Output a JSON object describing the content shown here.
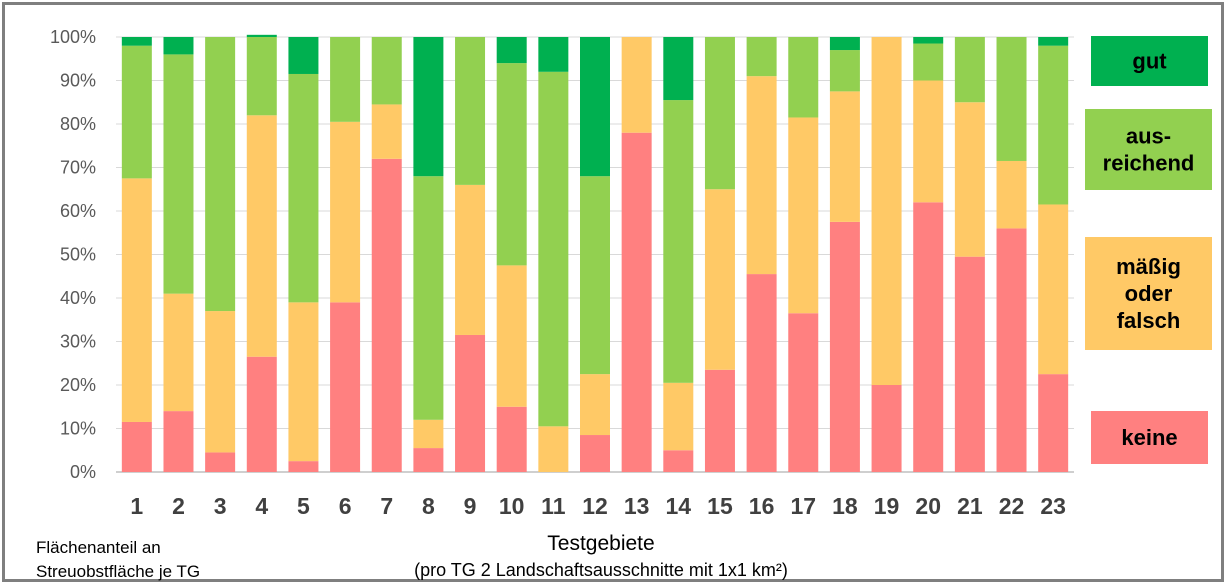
{
  "chart_data": {
    "type": "bar",
    "stacked": true,
    "categories": [
      "1",
      "2",
      "3",
      "4",
      "5",
      "6",
      "7",
      "8",
      "9",
      "10",
      "11",
      "12",
      "13",
      "14",
      "15",
      "16",
      "17",
      "18",
      "19",
      "20",
      "21",
      "22",
      "23"
    ],
    "series": [
      {
        "name": "keine",
        "color": "#ff8080",
        "values": [
          11.5,
          14,
          4.5,
          26.5,
          2.5,
          39,
          72,
          5.5,
          31.5,
          15,
          0,
          8.5,
          78,
          5,
          23.5,
          45.5,
          36.5,
          57.5,
          20,
          62,
          49.5,
          56,
          22.5
        ]
      },
      {
        "name": "mäßig oder falsch",
        "color": "#ffc966",
        "values": [
          56,
          27,
          32.5,
          55.5,
          36.5,
          41.5,
          12.5,
          6.5,
          34.5,
          32.5,
          10.5,
          14,
          22,
          15.5,
          41.5,
          45.5,
          45,
          30,
          80,
          28,
          35.5,
          15.5,
          39
        ]
      },
      {
        "name": "aus- reichend",
        "color": "#92d050",
        "values": [
          30.5,
          55,
          63,
          18,
          52.5,
          19.5,
          15.5,
          56,
          34,
          46.5,
          81.5,
          45.5,
          0,
          65,
          35,
          9,
          18.5,
          9.5,
          0,
          8.5,
          15,
          28.5,
          36.5
        ]
      },
      {
        "name": "gut",
        "color": "#00b050",
        "values": [
          2,
          4,
          0,
          0.5,
          8.5,
          0,
          0,
          32,
          0,
          6,
          8,
          32,
          0,
          14.5,
          0,
          0,
          0,
          3,
          0,
          1.5,
          0,
          0,
          2
        ]
      }
    ],
    "yticks": [
      "0%",
      "10%",
      "20%",
      "30%",
      "40%",
      "50%",
      "60%",
      "70%",
      "80%",
      "90%",
      "100%"
    ],
    "ylim": [
      0,
      100
    ],
    "xlabel": "Testgebiete",
    "xlabel_sub": "(pro TG 2 Landschaftsausschnitte mit 1x1 km²)",
    "ylabel_note": [
      "Flächenanteil an",
      "Streuobstfläche je TG"
    ],
    "legend": [
      {
        "lines": [
          "gut"
        ],
        "color": "#00b050"
      },
      {
        "lines": [
          "aus-",
          "reichend"
        ],
        "color": "#92d050"
      },
      {
        "lines": [
          "mäßig",
          "oder",
          "falsch"
        ],
        "color": "#ffc966"
      },
      {
        "lines": [
          "keine"
        ],
        "color": "#ff8080"
      }
    ],
    "grid": true,
    "legend_position": "right"
  }
}
